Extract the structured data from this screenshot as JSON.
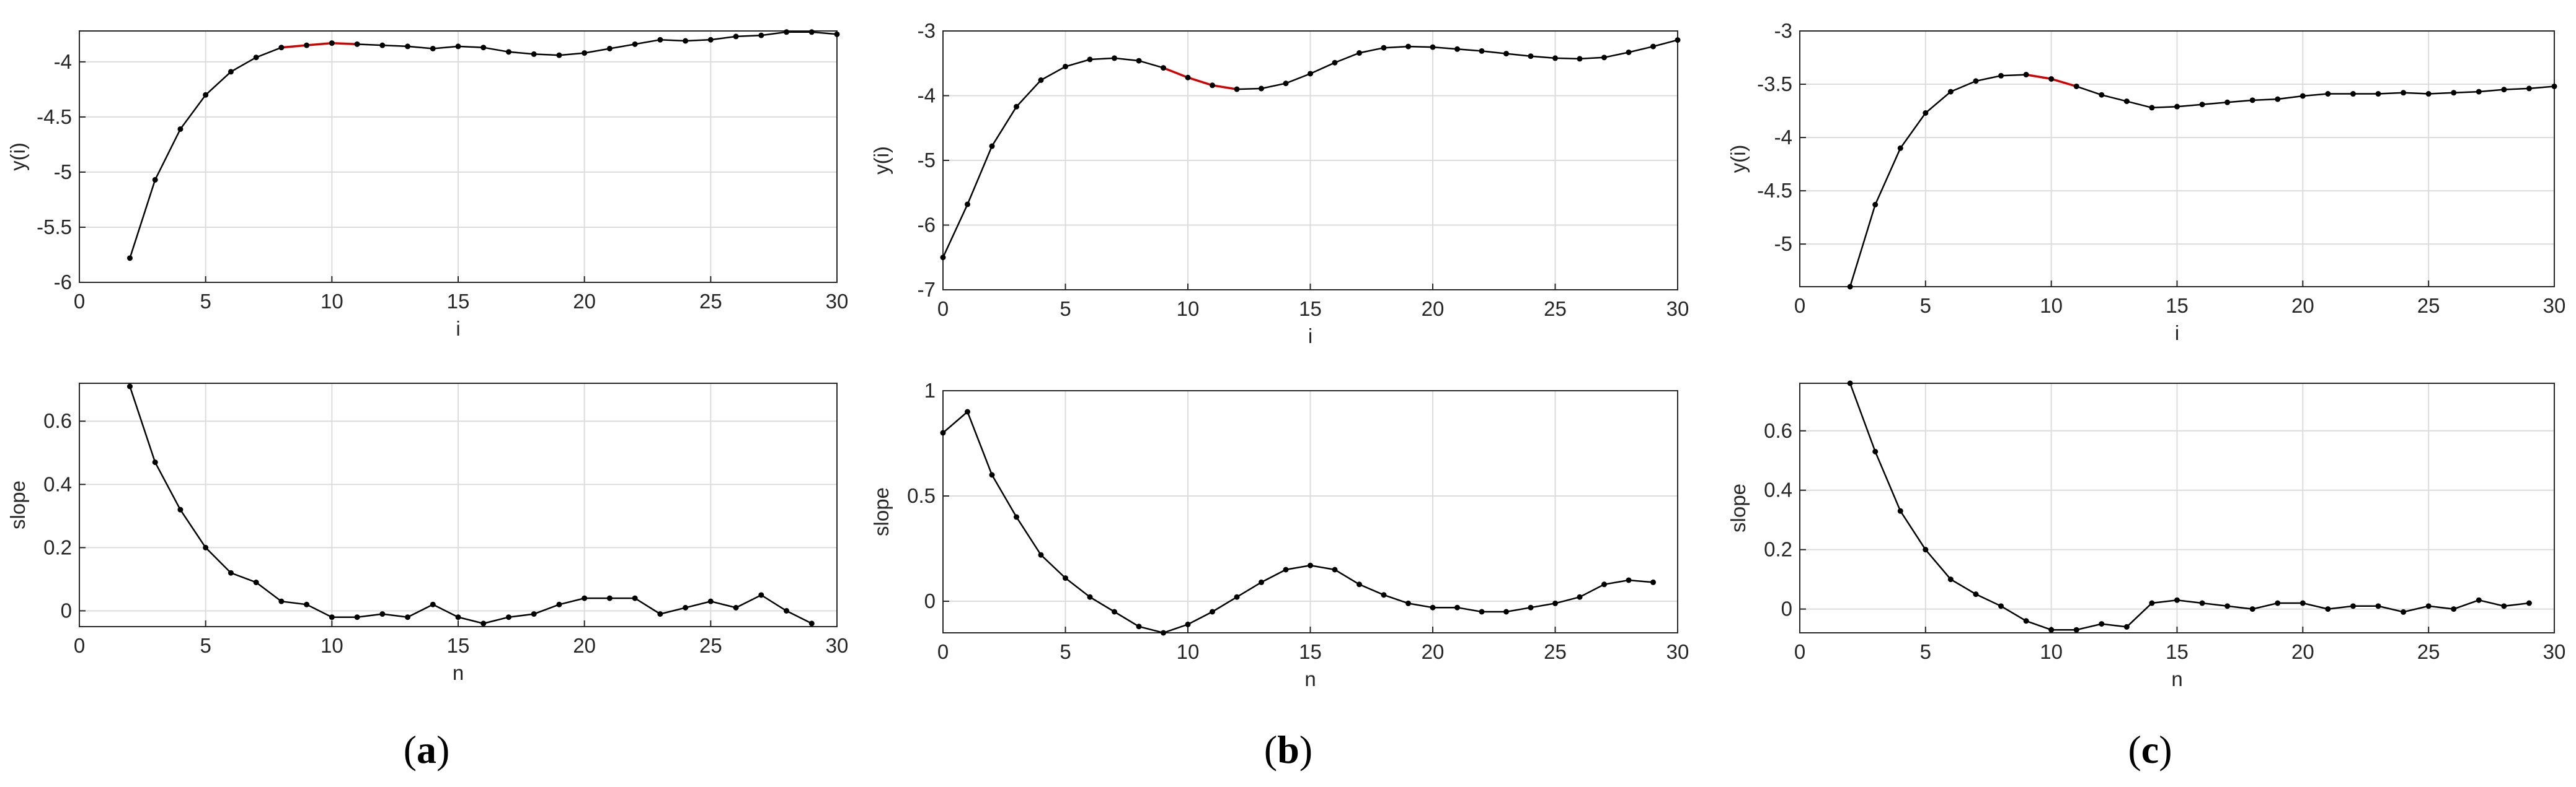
{
  "panels": [
    {
      "id": "a",
      "label_open": "(",
      "label_letter": "a",
      "label_close": ")"
    },
    {
      "id": "b",
      "label_open": "(",
      "label_letter": "b",
      "label_close": ")"
    },
    {
      "id": "c",
      "label_open": "(",
      "label_letter": "c",
      "label_close": ")"
    }
  ],
  "colors": {
    "series": "#000000",
    "highlight": "#d40000",
    "grid": "#dcdcdc",
    "axes": "#262626"
  },
  "chart_data": [
    {
      "panel": "a",
      "row": "top",
      "type": "line",
      "xlabel": "i",
      "ylabel": "y(i)",
      "xlim": [
        0,
        30
      ],
      "ylim": [
        -6,
        -3.72
      ],
      "xticks": [
        0,
        5,
        10,
        15,
        20,
        25,
        30
      ],
      "yticks": [
        -6,
        -5.5,
        -5,
        -4.5,
        -4
      ],
      "ytick_labels": [
        "-6",
        "-5.5",
        "-5",
        "-4.5",
        "-4"
      ],
      "grid": true,
      "x": [
        2,
        3,
        4,
        5,
        6,
        7,
        8,
        9,
        10,
        11,
        12,
        13,
        14,
        15,
        16,
        17,
        18,
        19,
        20,
        21,
        22,
        23,
        24,
        25,
        26,
        27,
        28,
        29,
        30
      ],
      "y": [
        -5.78,
        -5.07,
        -4.61,
        -4.3,
        -4.09,
        -3.96,
        -3.87,
        -3.85,
        -3.83,
        -3.84,
        -3.85,
        -3.86,
        -3.88,
        -3.86,
        -3.87,
        -3.91,
        -3.93,
        -3.94,
        -3.92,
        -3.88,
        -3.84,
        -3.8,
        -3.81,
        -3.8,
        -3.77,
        -3.76,
        -3.73,
        -3.73,
        -3.75
      ],
      "highlight_x": [
        8,
        9,
        10,
        11
      ]
    },
    {
      "panel": "a",
      "row": "bottom",
      "type": "line",
      "xlabel": "n",
      "ylabel": "slope",
      "xlim": [
        0,
        30
      ],
      "ylim": [
        -0.05,
        0.72
      ],
      "xticks": [
        0,
        5,
        10,
        15,
        20,
        25,
        30
      ],
      "yticks": [
        0,
        0.2,
        0.4,
        0.6
      ],
      "ytick_labels": [
        "0",
        "0.2",
        "0.4",
        "0.6"
      ],
      "grid": true,
      "x": [
        2,
        3,
        4,
        5,
        6,
        7,
        8,
        9,
        10,
        11,
        12,
        13,
        14,
        15,
        16,
        17,
        18,
        19,
        20,
        21,
        22,
        23,
        24,
        25,
        26,
        27,
        28,
        29
      ],
      "y": [
        0.71,
        0.47,
        0.32,
        0.2,
        0.12,
        0.09,
        0.03,
        0.02,
        -0.02,
        -0.02,
        -0.01,
        -0.02,
        0.02,
        -0.02,
        -0.04,
        -0.02,
        -0.01,
        0.02,
        0.04,
        0.04,
        0.04,
        -0.01,
        0.01,
        0.03,
        0.01,
        0.05,
        0.0,
        -0.04
      ]
    },
    {
      "panel": "b",
      "row": "top",
      "type": "line",
      "xlabel": "i",
      "ylabel": "y(i)",
      "xlim": [
        0,
        30
      ],
      "ylim": [
        -7,
        -3
      ],
      "xticks": [
        0,
        5,
        10,
        15,
        20,
        25,
        30
      ],
      "yticks": [
        -7,
        -6,
        -5,
        -4,
        -3
      ],
      "ytick_labels": [
        "-7",
        "-6",
        "-5",
        "-4",
        "-3"
      ],
      "grid": true,
      "x": [
        0,
        1,
        2,
        3,
        4,
        5,
        6,
        7,
        8,
        9,
        10,
        11,
        12,
        13,
        14,
        15,
        16,
        17,
        18,
        19,
        20,
        21,
        22,
        23,
        24,
        25,
        26,
        27,
        28,
        29,
        30
      ],
      "y": [
        -6.5,
        -5.68,
        -4.78,
        -4.17,
        -3.76,
        -3.55,
        -3.44,
        -3.42,
        -3.46,
        -3.57,
        -3.72,
        -3.84,
        -3.9,
        -3.89,
        -3.81,
        -3.66,
        -3.49,
        -3.34,
        -3.26,
        -3.24,
        -3.25,
        -3.28,
        -3.31,
        -3.35,
        -3.39,
        -3.42,
        -3.43,
        -3.41,
        -3.33,
        -3.24,
        -3.14
      ],
      "highlight_x": [
        9,
        10,
        11,
        12
      ]
    },
    {
      "panel": "b",
      "row": "bottom",
      "type": "line",
      "xlabel": "n",
      "ylabel": "slope",
      "xlim": [
        0,
        30
      ],
      "ylim": [
        -0.15,
        1
      ],
      "xticks": [
        0,
        5,
        10,
        15,
        20,
        25,
        30
      ],
      "yticks": [
        0,
        0.5,
        1
      ],
      "ytick_labels": [
        "0",
        "0.5",
        "1"
      ],
      "grid": true,
      "x": [
        0,
        1,
        2,
        3,
        4,
        5,
        6,
        7,
        8,
        9,
        10,
        11,
        12,
        13,
        14,
        15,
        16,
        17,
        18,
        19,
        20,
        21,
        22,
        23,
        24,
        25,
        26,
        27,
        28,
        29
      ],
      "y": [
        0.8,
        0.9,
        0.6,
        0.4,
        0.22,
        0.11,
        0.02,
        -0.05,
        -0.12,
        -0.15,
        -0.11,
        -0.05,
        0.02,
        0.09,
        0.15,
        0.17,
        0.15,
        0.08,
        0.03,
        -0.01,
        -0.03,
        -0.03,
        -0.05,
        -0.05,
        -0.03,
        -0.01,
        0.02,
        0.08,
        0.1,
        0.09
      ]
    },
    {
      "panel": "c",
      "row": "top",
      "type": "line",
      "xlabel": "i",
      "ylabel": "y(i)",
      "xlim": [
        0,
        30
      ],
      "ylim": [
        -5.4,
        -3
      ],
      "xticks": [
        0,
        5,
        10,
        15,
        20,
        25,
        30
      ],
      "yticks": [
        -5,
        -4.5,
        -4,
        -3.5,
        -3
      ],
      "ytick_labels": [
        "-5",
        "-4.5",
        "-4",
        "-3.5",
        "-3"
      ],
      "grid": true,
      "x": [
        2,
        3,
        4,
        5,
        6,
        7,
        8,
        9,
        10,
        11,
        12,
        13,
        14,
        15,
        16,
        17,
        18,
        19,
        20,
        21,
        22,
        23,
        24,
        25,
        26,
        27,
        28,
        29,
        30
      ],
      "y": [
        -5.4,
        -4.63,
        -4.1,
        -3.77,
        -3.57,
        -3.47,
        -3.42,
        -3.41,
        -3.45,
        -3.52,
        -3.6,
        -3.66,
        -3.72,
        -3.71,
        -3.69,
        -3.67,
        -3.65,
        -3.64,
        -3.61,
        -3.59,
        -3.59,
        -3.59,
        -3.58,
        -3.59,
        -3.58,
        -3.57,
        -3.55,
        -3.54,
        -3.52
      ],
      "highlight_x": [
        9,
        10,
        11
      ]
    },
    {
      "panel": "c",
      "row": "bottom",
      "type": "line",
      "xlabel": "n",
      "ylabel": "slope",
      "xlim": [
        0,
        30
      ],
      "ylim": [
        -0.08,
        0.76
      ],
      "xticks": [
        0,
        5,
        10,
        15,
        20,
        25,
        30
      ],
      "yticks": [
        0,
        0.2,
        0.4,
        0.6
      ],
      "ytick_labels": [
        "0",
        "0.2",
        "0.4",
        "0.6"
      ],
      "grid": true,
      "x": [
        2,
        3,
        4,
        5,
        6,
        7,
        8,
        9,
        10,
        11,
        12,
        13,
        14,
        15,
        16,
        17,
        18,
        19,
        20,
        21,
        22,
        23,
        24,
        25,
        26,
        27,
        28,
        29
      ],
      "y": [
        0.76,
        0.53,
        0.33,
        0.2,
        0.1,
        0.05,
        0.01,
        -0.04,
        -0.07,
        -0.07,
        -0.05,
        -0.06,
        0.02,
        0.03,
        0.02,
        0.01,
        0.0,
        0.02,
        0.02,
        0.0,
        0.01,
        0.01,
        -0.01,
        0.01,
        0.0,
        0.03,
        0.01,
        0.02
      ]
    }
  ]
}
